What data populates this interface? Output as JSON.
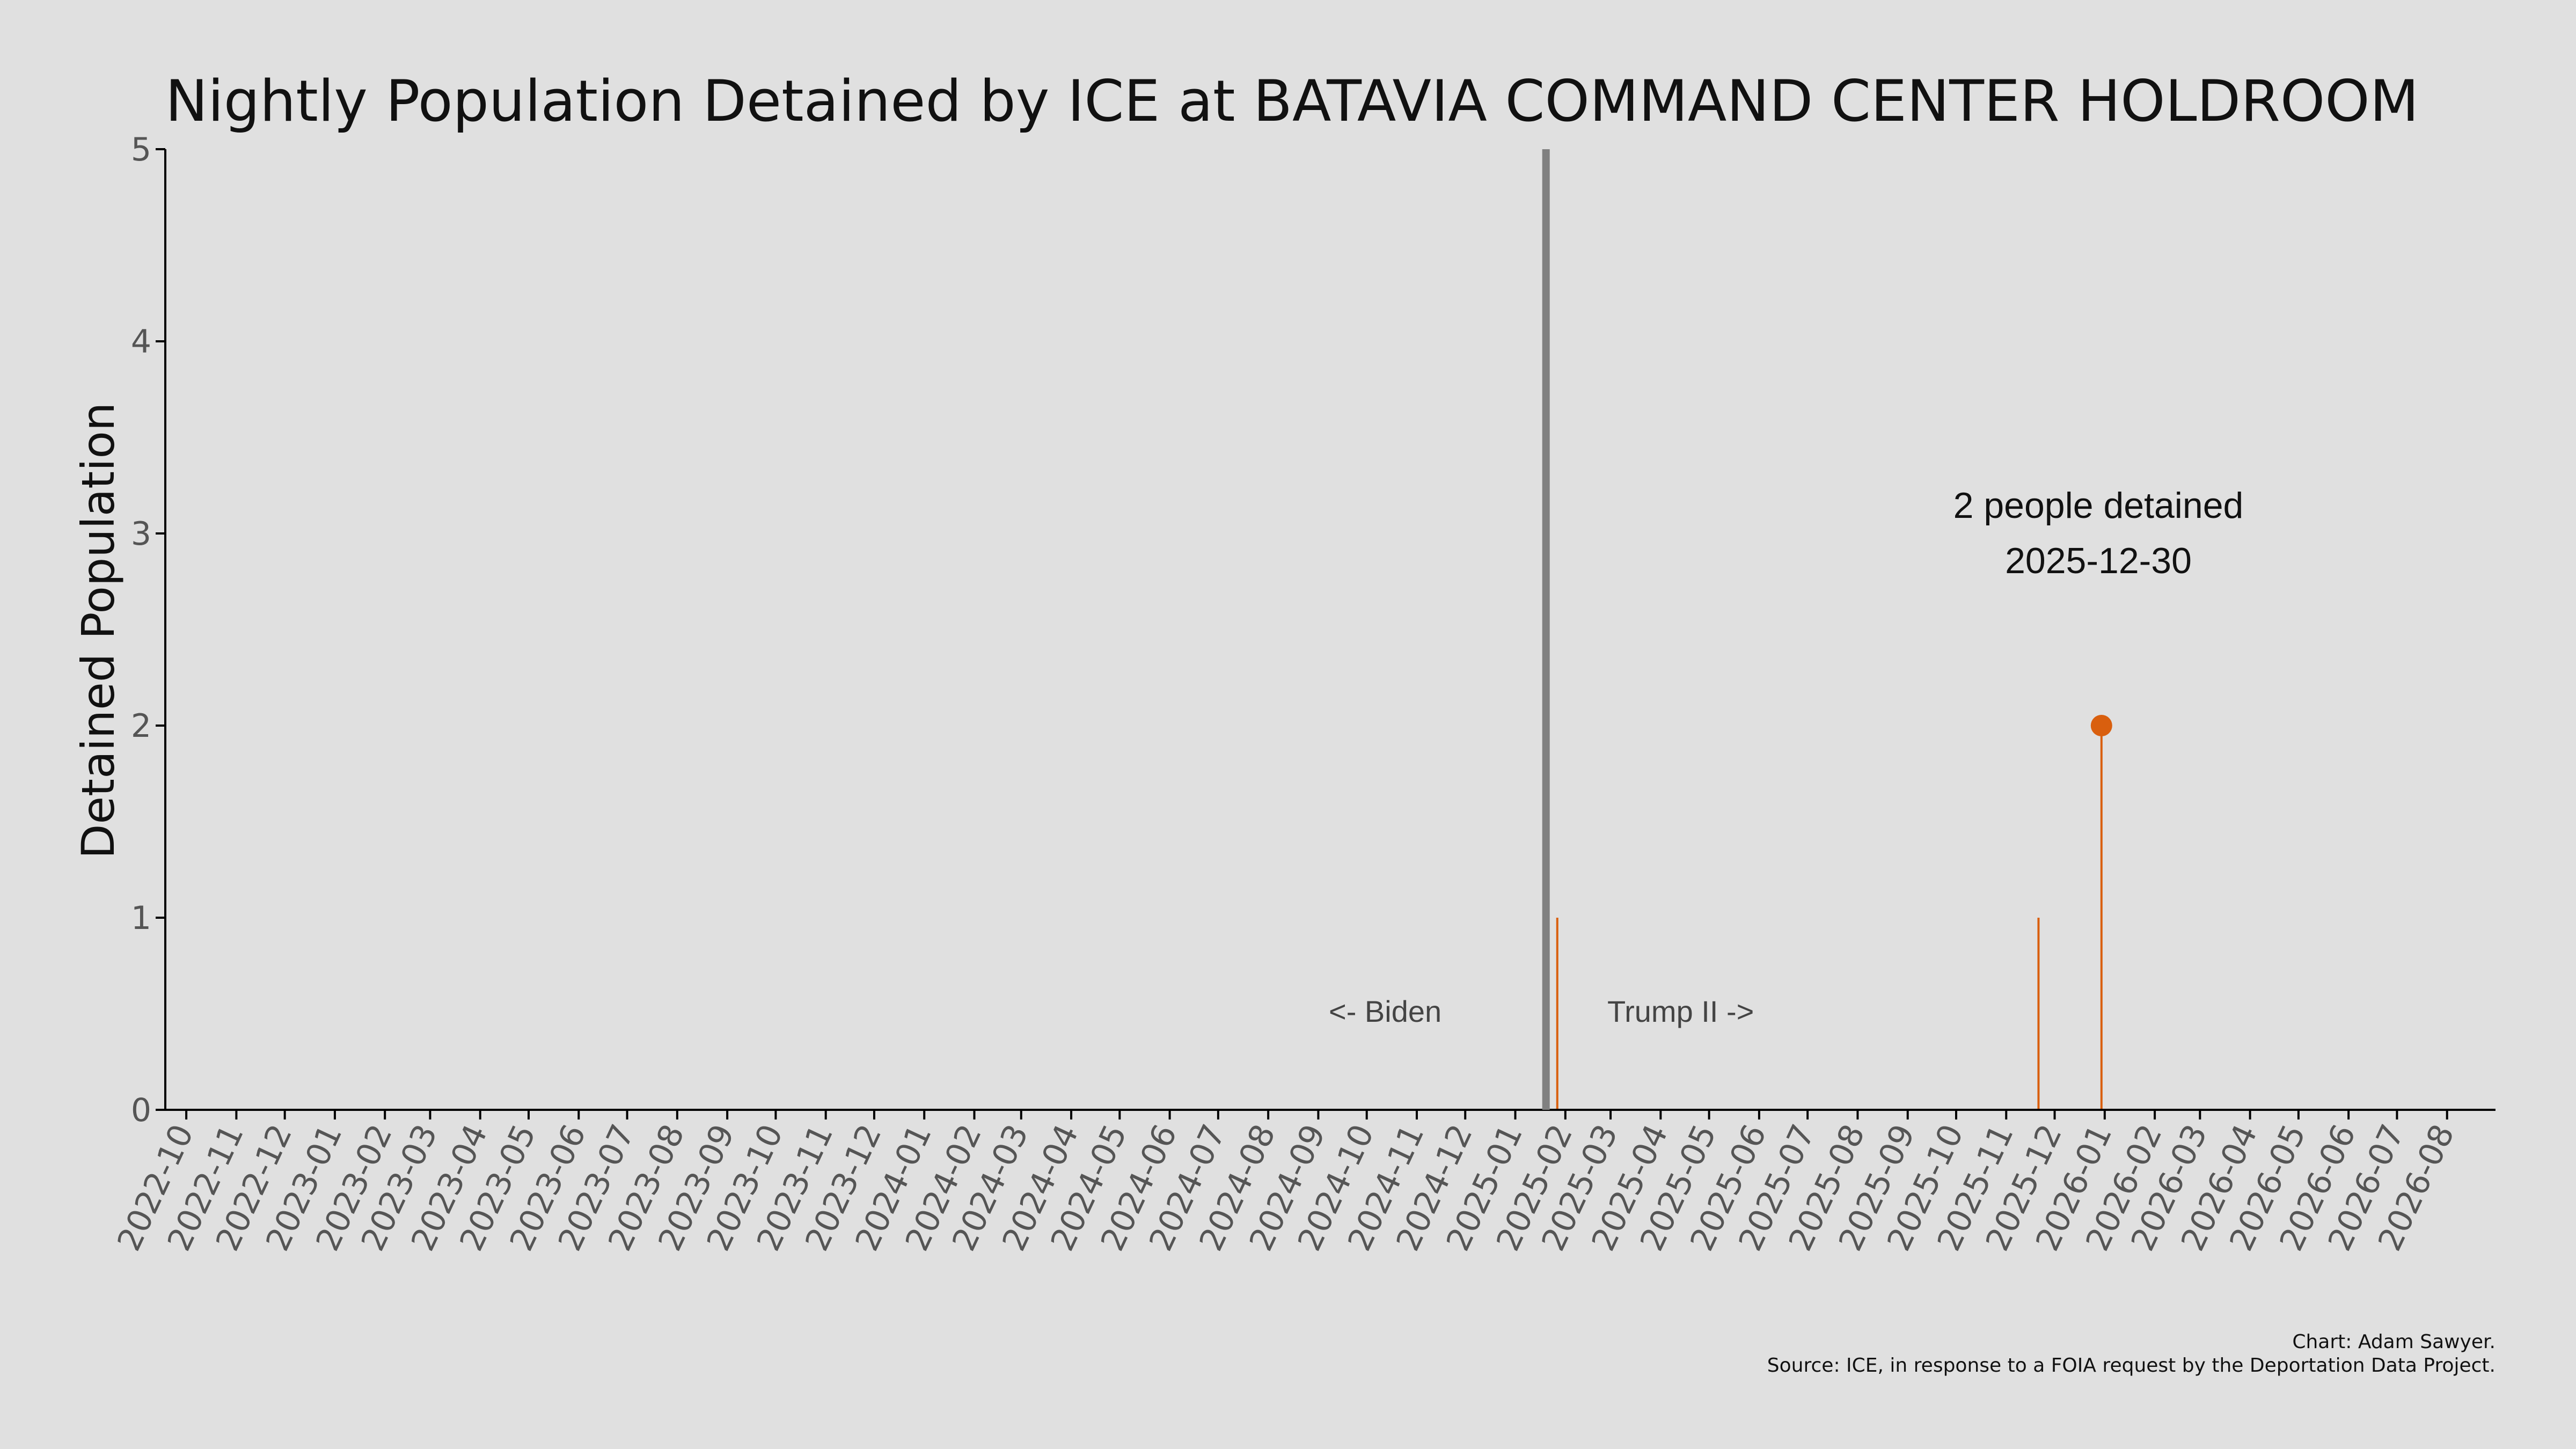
{
  "chart_data": {
    "type": "bar",
    "title": "Nightly Population Detained by ICE at BATAVIA COMMAND CENTER HOLDROOM",
    "xlabel": "",
    "ylabel": "Detained Population",
    "ylim": [
      0,
      5
    ],
    "yticks": [
      "0",
      "1",
      "2",
      "3",
      "4",
      "5"
    ],
    "xlim": [
      "2022-09-18",
      "2026-08-31"
    ],
    "xticks": [
      "2022-10",
      "2022-11",
      "2022-12",
      "2023-01",
      "2023-02",
      "2023-03",
      "2023-04",
      "2023-05",
      "2023-06",
      "2023-07",
      "2023-08",
      "2023-09",
      "2023-10",
      "2023-11",
      "2023-12",
      "2024-01",
      "2024-02",
      "2024-03",
      "2024-04",
      "2024-05",
      "2024-06",
      "2024-07",
      "2024-08",
      "2024-09",
      "2024-10",
      "2024-11",
      "2024-12",
      "2025-01",
      "2025-02",
      "2025-03",
      "2025-04",
      "2025-05",
      "2025-06",
      "2025-07",
      "2025-08",
      "2025-09",
      "2025-10",
      "2025-11",
      "2025-12",
      "2026-01",
      "2026-02",
      "2026-03",
      "2026-04",
      "2026-05",
      "2026-06",
      "2026-07",
      "2026-08"
    ],
    "grid": false,
    "series": [
      {
        "x": [
          "2025-01-27",
          "2025-11-21",
          "2025-12-30"
        ],
        "values": [
          1,
          1,
          2
        ]
      }
    ],
    "highlight": {
      "x": "2025-12-30",
      "value": 2
    },
    "divider": {
      "x": "2025-01-20"
    },
    "annotations": {
      "peak_line1": "2 people detained",
      "peak_line2": "2025-12-30",
      "left_era": "<- Biden",
      "right_era": "Trump II ->"
    },
    "colors": {
      "bar": "#d95f0e",
      "divider": "#808080",
      "axis": "#000000"
    }
  },
  "credits": {
    "line1": "Chart: Adam Sawyer.",
    "line2": "Source: ICE, in response to a FOIA request by the Deportation Data Project."
  }
}
